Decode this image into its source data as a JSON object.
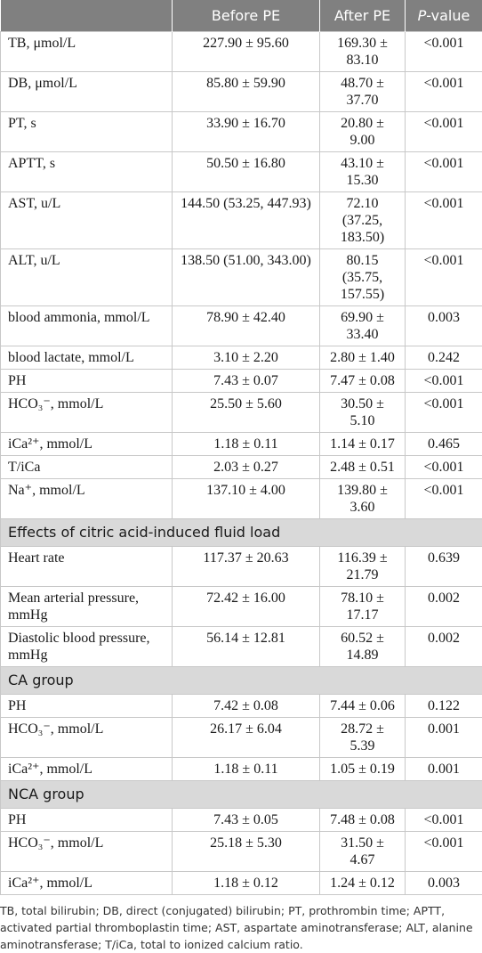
{
  "table": {
    "header": [
      "",
      "Before PE",
      "After PE",
      "P-value"
    ],
    "rows": [
      [
        "TB, μmol/L",
        "227.90 ± 95.60",
        "169.30 ± 83.10",
        "<0.001"
      ],
      [
        "DB, μmol/L",
        "85.80 ± 59.90",
        "48.70 ± 37.70",
        "<0.001"
      ],
      [
        "PT, s",
        "33.90 ± 16.70",
        "20.80 ± 9.00",
        "<0.001"
      ],
      [
        "APTT, s",
        "50.50 ± 16.80",
        "43.10 ± 15.30",
        "<0.001"
      ],
      [
        "AST, u/L",
        "144.50 (53.25, 447.93)",
        "72.10 (37.25, 183.50)",
        "<0.001"
      ],
      [
        "ALT, u/L",
        "138.50 (51.00, 343.00)",
        "80.15 (35.75, 157.55)",
        "<0.001"
      ],
      [
        "blood ammonia, mmol/L",
        "78.90 ± 42.40",
        "69.90 ± 33.40",
        "0.003"
      ],
      [
        "blood lactate, mmol/L",
        "3.10 ± 2.20",
        "2.80 ± 1.40",
        "0.242"
      ],
      [
        "PH",
        "7.43 ± 0.07",
        "7.47 ± 0.08",
        "<0.001"
      ],
      [
        "HCO₃⁻, mmol/L",
        "25.50 ± 5.60",
        "30.50 ± 5.10",
        "<0.001"
      ],
      [
        "iCa²⁺, mmol/L",
        "1.18 ± 0.11",
        "1.14 ± 0.17",
        "0.465"
      ],
      [
        "T/iCa",
        "2.03 ± 0.27",
        "2.48 ± 0.51",
        "<0.001"
      ],
      [
        "Na⁺, mmol/L",
        "137.10 ± 4.00",
        "139.80 ± 3.60",
        "<0.001"
      ],
      [
        "Effects of citric acid-induced fluid load"
      ],
      [
        "Heart rate",
        "117.37 ± 20.63",
        "116.39 ± 21.79",
        "0.639"
      ],
      [
        "Mean arterial pressure, mmHg",
        "72.42 ± 16.00",
        "78.10 ± 17.17",
        "0.002"
      ],
      [
        "Diastolic blood pressure, mmHg",
        "56.14 ± 12.81",
        "60.52 ± 14.89",
        "0.002"
      ],
      [
        "CA group"
      ],
      [
        "PH",
        "7.42 ± 0.08",
        "7.44 ± 0.06",
        "0.122"
      ],
      [
        "HCO₃⁻, mmol/L",
        "26.17 ± 6.04",
        "28.72 ± 5.39",
        "0.001"
      ],
      [
        "iCa²⁺, mmol/L",
        "1.18 ± 0.11",
        "1.05 ± 0.19",
        "0.001"
      ],
      [
        "NCA group"
      ],
      [
        "PH",
        "7.43 ± 0.05",
        "7.48 ± 0.08",
        "<0.001"
      ],
      [
        "HCO₃⁻, mmol/L",
        "25.18 ± 5.30",
        "31.50 ± 4.67",
        "<0.001"
      ],
      [
        "iCa²⁺, mmol/L",
        "1.18 ± 0.12",
        "1.24 ± 0.12",
        "0.003"
      ]
    ]
  },
  "footnote": "TB, total bilirubin; DB, direct (conjugated) bilirubin; PT, prothrombin time; APTT, activated partial thromboplastin time; AST, aspartate aminotransferase; ALT, alanine aminotransferase; T/iCa, total to ionized calcium ratio."
}
